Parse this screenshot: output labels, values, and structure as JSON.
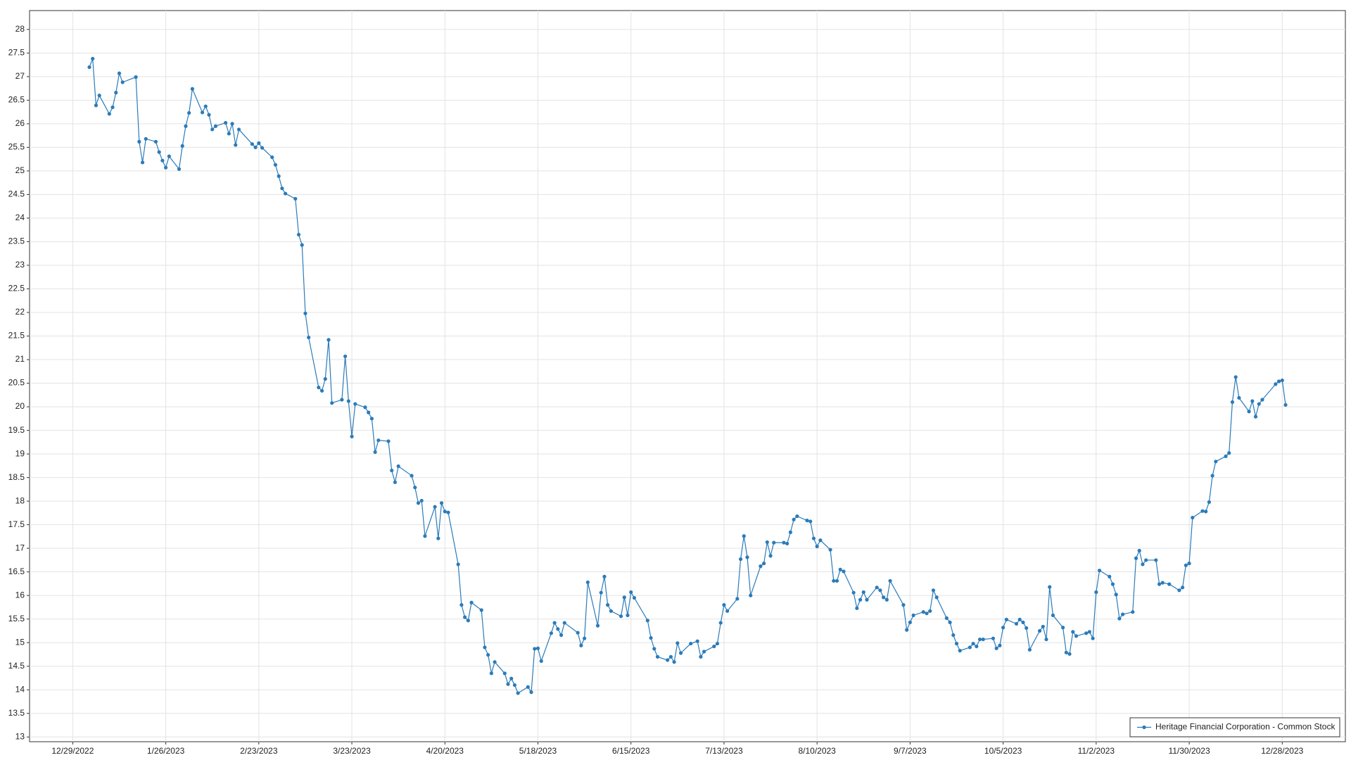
{
  "chart_data": {
    "type": "line",
    "x": [
      "1/3/2023",
      "1/4/2023",
      "1/5/2023",
      "1/6/2023",
      "1/9/2023",
      "1/10/2023",
      "1/11/2023",
      "1/12/2023",
      "1/13/2023",
      "1/17/2023",
      "1/18/2023",
      "1/19/2023",
      "1/20/2023",
      "1/23/2023",
      "1/24/2023",
      "1/25/2023",
      "1/26/2023",
      "1/27/2023",
      "1/30/2023",
      "1/31/2023",
      "2/1/2023",
      "2/2/2023",
      "2/3/2023",
      "2/6/2023",
      "2/7/2023",
      "2/8/2023",
      "2/9/2023",
      "2/10/2023",
      "2/13/2023",
      "2/14/2023",
      "2/15/2023",
      "2/16/2023",
      "2/17/2023",
      "2/21/2023",
      "2/22/2023",
      "2/23/2023",
      "2/24/2023",
      "2/27/2023",
      "2/28/2023",
      "3/1/2023",
      "3/2/2023",
      "3/3/2023",
      "3/6/2023",
      "3/7/2023",
      "3/8/2023",
      "3/9/2023",
      "3/10/2023",
      "3/13/2023",
      "3/14/2023",
      "3/15/2023",
      "3/16/2023",
      "3/17/2023",
      "3/20/2023",
      "3/21/2023",
      "3/22/2023",
      "3/23/2023",
      "3/24/2023",
      "3/27/2023",
      "3/28/2023",
      "3/29/2023",
      "3/30/2023",
      "3/31/2023",
      "4/3/2023",
      "4/4/2023",
      "4/5/2023",
      "4/6/2023",
      "4/10/2023",
      "4/11/2023",
      "4/12/2023",
      "4/13/2023",
      "4/14/2023",
      "4/17/2023",
      "4/18/2023",
      "4/19/2023",
      "4/20/2023",
      "4/21/2023",
      "4/24/2023",
      "4/25/2023",
      "4/26/2023",
      "4/27/2023",
      "4/28/2023",
      "5/1/2023",
      "5/2/2023",
      "5/3/2023",
      "5/4/2023",
      "5/5/2023",
      "5/8/2023",
      "5/9/2023",
      "5/10/2023",
      "5/11/2023",
      "5/12/2023",
      "5/15/2023",
      "5/16/2023",
      "5/17/2023",
      "5/18/2023",
      "5/19/2023",
      "5/22/2023",
      "5/23/2023",
      "5/24/2023",
      "5/25/2023",
      "5/26/2023",
      "5/30/2023",
      "5/31/2023",
      "6/1/2023",
      "6/2/2023",
      "6/5/2023",
      "6/6/2023",
      "6/7/2023",
      "6/8/2023",
      "6/9/2023",
      "6/12/2023",
      "6/13/2023",
      "6/14/2023",
      "6/15/2023",
      "6/16/2023",
      "6/20/2023",
      "6/21/2023",
      "6/22/2023",
      "6/23/2023",
      "6/26/2023",
      "6/27/2023",
      "6/28/2023",
      "6/29/2023",
      "6/30/2023",
      "7/3/2023",
      "7/5/2023",
      "7/6/2023",
      "7/7/2023",
      "7/10/2023",
      "7/11/2023",
      "7/12/2023",
      "7/13/2023",
      "7/14/2023",
      "7/17/2023",
      "7/18/2023",
      "7/19/2023",
      "7/20/2023",
      "7/21/2023",
      "7/24/2023",
      "7/25/2023",
      "7/26/2023",
      "7/27/2023",
      "7/28/2023",
      "7/31/2023",
      "8/1/2023",
      "8/2/2023",
      "8/3/2023",
      "8/4/2023",
      "8/7/2023",
      "8/8/2023",
      "8/9/2023",
      "8/10/2023",
      "8/11/2023",
      "8/14/2023",
      "8/15/2023",
      "8/16/2023",
      "8/17/2023",
      "8/18/2023",
      "8/21/2023",
      "8/22/2023",
      "8/23/2023",
      "8/24/2023",
      "8/25/2023",
      "8/28/2023",
      "8/29/2023",
      "8/30/2023",
      "8/31/2023",
      "9/1/2023",
      "9/5/2023",
      "9/6/2023",
      "9/7/2023",
      "9/8/2023",
      "9/11/2023",
      "9/12/2023",
      "9/13/2023",
      "9/14/2023",
      "9/15/2023",
      "9/18/2023",
      "9/19/2023",
      "9/20/2023",
      "9/21/2023",
      "9/22/2023",
      "9/25/2023",
      "9/26/2023",
      "9/27/2023",
      "9/28/2023",
      "9/29/2023",
      "10/2/2023",
      "10/3/2023",
      "10/4/2023",
      "10/5/2023",
      "10/6/2023",
      "10/9/2023",
      "10/10/2023",
      "10/11/2023",
      "10/12/2023",
      "10/13/2023",
      "10/16/2023",
      "10/17/2023",
      "10/18/2023",
      "10/19/2023",
      "10/20/2023",
      "10/23/2023",
      "10/24/2023",
      "10/25/2023",
      "10/26/2023",
      "10/27/2023",
      "10/30/2023",
      "10/31/2023",
      "11/1/2023",
      "11/2/2023",
      "11/3/2023",
      "11/6/2023",
      "11/7/2023",
      "11/8/2023",
      "11/9/2023",
      "11/10/2023",
      "11/13/2023",
      "11/14/2023",
      "11/15/2023",
      "11/16/2023",
      "11/17/2023",
      "11/20/2023",
      "11/21/2023",
      "11/22/2023",
      "11/24/2023",
      "11/27/2023",
      "11/28/2023",
      "11/29/2023",
      "11/30/2023",
      "12/1/2023",
      "12/4/2023",
      "12/5/2023",
      "12/6/2023",
      "12/7/2023",
      "12/8/2023",
      "12/11/2023",
      "12/12/2023",
      "12/13/2023",
      "12/14/2023",
      "12/15/2023",
      "12/18/2023",
      "12/19/2023",
      "12/20/2023",
      "12/21/2023",
      "12/22/2023",
      "12/26/2023",
      "12/27/2023",
      "12/28/2023",
      "12/29/2023"
    ],
    "series": [
      {
        "name": "Heritage Financial Corporation - Common Stock",
        "color": "#2b7bb9",
        "values": [
          27.2,
          27.38,
          26.39,
          26.6,
          26.21,
          26.35,
          26.66,
          27.07,
          26.88,
          26.99,
          25.62,
          25.18,
          25.68,
          25.62,
          25.4,
          25.22,
          25.07,
          25.31,
          25.04,
          25.53,
          25.95,
          26.23,
          26.74,
          26.24,
          26.37,
          26.19,
          25.88,
          25.95,
          26.02,
          25.79,
          26.0,
          25.55,
          25.88,
          25.57,
          25.5,
          25.59,
          25.49,
          25.29,
          25.13,
          24.89,
          24.63,
          24.52,
          24.41,
          23.65,
          23.43,
          21.98,
          21.47,
          20.41,
          20.34,
          20.59,
          21.42,
          20.08,
          20.15,
          21.07,
          20.12,
          19.37,
          20.06,
          19.99,
          19.88,
          19.75,
          19.04,
          19.29,
          19.27,
          18.65,
          18.4,
          18.74,
          18.54,
          18.29,
          17.96,
          18.01,
          17.26,
          17.88,
          17.21,
          17.96,
          17.78,
          17.76,
          16.66,
          15.8,
          15.54,
          15.47,
          15.85,
          15.69,
          14.9,
          14.74,
          14.35,
          14.59,
          14.35,
          14.12,
          14.24,
          14.1,
          13.93,
          14.06,
          13.95,
          14.87,
          14.88,
          14.61,
          15.2,
          15.42,
          15.29,
          15.16,
          15.42,
          15.21,
          14.94,
          15.09,
          16.28,
          15.36,
          16.06,
          16.4,
          15.8,
          15.67,
          15.56,
          15.96,
          15.58,
          16.07,
          15.95,
          15.47,
          15.1,
          14.87,
          14.7,
          14.63,
          14.7,
          14.59,
          14.99,
          14.78,
          14.98,
          15.03,
          14.7,
          14.81,
          14.92,
          14.98,
          15.42,
          15.8,
          15.67,
          15.93,
          16.77,
          17.26,
          16.81,
          16.0,
          16.62,
          16.68,
          17.13,
          16.84,
          17.12,
          17.12,
          17.1,
          17.34,
          17.61,
          17.68,
          17.59,
          17.57,
          17.21,
          17.04,
          17.17,
          16.97,
          16.31,
          16.31,
          16.55,
          16.51,
          16.06,
          15.73,
          15.91,
          16.07,
          15.91,
          16.17,
          16.11,
          15.96,
          15.91,
          16.31,
          15.8,
          15.27,
          15.43,
          15.58,
          15.65,
          15.62,
          15.67,
          16.11,
          15.96,
          15.52,
          15.43,
          15.16,
          14.98,
          14.83,
          14.9,
          14.98,
          14.92,
          15.07,
          15.07,
          15.09,
          14.88,
          14.94,
          15.32,
          15.49,
          15.4,
          15.49,
          15.43,
          15.31,
          14.85,
          15.25,
          15.34,
          15.07,
          16.18,
          15.58,
          15.32,
          14.79,
          14.76,
          15.23,
          15.14,
          15.2,
          15.23,
          15.09,
          16.07,
          16.53,
          16.4,
          16.24,
          16.02,
          15.51,
          15.6,
          15.65,
          16.79,
          16.95,
          16.66,
          16.75,
          16.75,
          16.24,
          16.27,
          16.24,
          16.11,
          16.17,
          16.64,
          16.68,
          17.65,
          17.79,
          17.78,
          17.98,
          18.54,
          18.84,
          18.95,
          19.02,
          20.1,
          20.63,
          20.19,
          19.9,
          20.12,
          19.79,
          20.06,
          20.15,
          20.48,
          20.54,
          20.56,
          20.04
        ]
      }
    ],
    "xlim": [
      "12/16/2022",
      "1/16/2024"
    ],
    "xticks": [
      "12/29/2022",
      "1/26/2023",
      "2/23/2023",
      "3/23/2023",
      "4/20/2023",
      "5/18/2023",
      "6/15/2023",
      "7/13/2023",
      "8/10/2023",
      "9/7/2023",
      "10/5/2023",
      "11/2/2023",
      "11/30/2023",
      "12/28/2023"
    ],
    "ylim": [
      12.9,
      28.4
    ],
    "yticks": [
      13,
      13.5,
      14,
      14.5,
      15,
      15.5,
      16,
      16.5,
      17,
      17.5,
      18,
      18.5,
      19,
      19.5,
      20,
      20.5,
      21,
      21.5,
      22,
      22.5,
      23,
      23.5,
      24,
      24.5,
      25,
      25.5,
      26,
      26.5,
      27,
      27.5,
      28
    ],
    "grid": true,
    "legend": "bottom-right"
  }
}
